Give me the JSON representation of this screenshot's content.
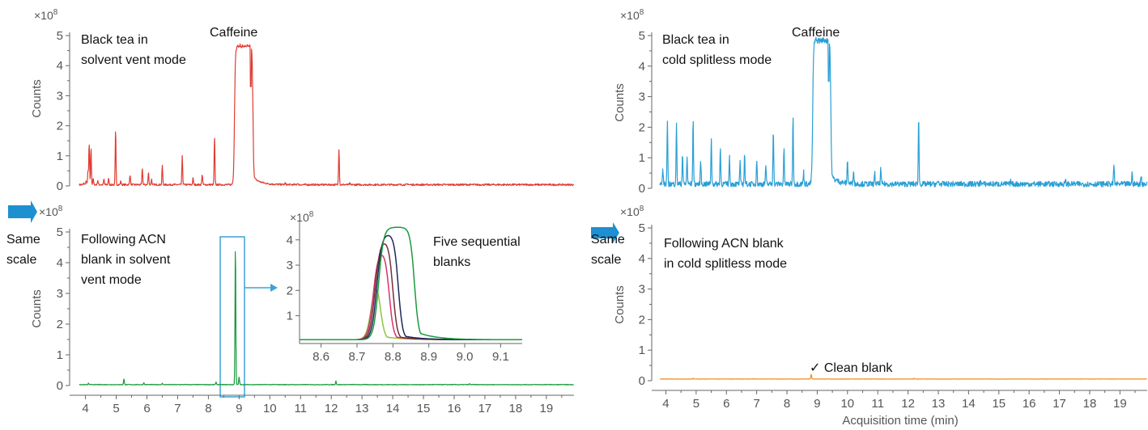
{
  "figure": {
    "x_axis_title": "Acquisition time (min)",
    "multiplier_base": "×10",
    "multiplier_exp": "8",
    "same_scale_line1": "Same",
    "same_scale_line2": "scale",
    "arrow_color": "#1E90D2",
    "zoom_box_color": "#3BA3D6"
  },
  "chart_data": [
    {
      "id": "top-left",
      "type": "line",
      "annotation_lines": [
        "Black tea in",
        "solvent vent mode"
      ],
      "peak_label": "Caffeine",
      "ylabel": "Counts",
      "xlim": [
        3.8,
        19.9
      ],
      "ylim": [
        0,
        5
      ],
      "xticks": [
        4,
        5,
        6,
        7,
        8,
        9,
        10,
        11,
        12,
        13,
        14,
        15,
        16,
        17,
        18,
        19
      ],
      "yticks": [
        0,
        1,
        2,
        3,
        4,
        5
      ],
      "color": "#E03C31",
      "baseline": 0.01,
      "peaks": [
        [
          3.95,
          0.05
        ],
        [
          4.02,
          0.12
        ],
        [
          4.08,
          0.45
        ],
        [
          4.12,
          1.38
        ],
        [
          4.18,
          1.22
        ],
        [
          4.25,
          0.2
        ],
        [
          4.4,
          0.15
        ],
        [
          4.6,
          0.18
        ],
        [
          4.75,
          0.22
        ],
        [
          4.98,
          1.82
        ],
        [
          5.15,
          0.12
        ],
        [
          5.45,
          0.35
        ],
        [
          5.85,
          0.55
        ],
        [
          6.05,
          0.42
        ],
        [
          6.15,
          0.18
        ],
        [
          6.5,
          0.65
        ],
        [
          7.15,
          0.95
        ],
        [
          7.5,
          0.22
        ],
        [
          7.8,
          0.35
        ],
        [
          8.2,
          1.6
        ],
        [
          10.5,
          0.05
        ],
        [
          10.9,
          0.05
        ],
        [
          12.25,
          1.2
        ],
        [
          12.6,
          0.04
        ],
        [
          14.5,
          0.03
        ]
      ],
      "plateau": [
        8.85,
        9.45,
        4.65
      ],
      "notch": [
        9.38,
        3.3
      ],
      "noise": 0.06
    },
    {
      "id": "bottom-left",
      "type": "line",
      "annotation_lines": [
        "Following ACN",
        "blank in solvent",
        "vent mode"
      ],
      "ylabel": "Counts",
      "xlim": [
        3.8,
        19.9
      ],
      "ylim": [
        0,
        5
      ],
      "xticks": [
        4,
        5,
        6,
        7,
        8,
        9,
        10,
        11,
        12,
        13,
        14,
        15,
        16,
        17,
        18,
        19
      ],
      "yticks": [
        0,
        1,
        2,
        3,
        4,
        5
      ],
      "color": "#1A9A3C",
      "baseline": 0.02,
      "peaks": [
        [
          5.25,
          0.18
        ],
        [
          4.1,
          0.04
        ],
        [
          5.9,
          0.06
        ],
        [
          6.5,
          0.04
        ],
        [
          8.25,
          0.08
        ],
        [
          8.88,
          4.55
        ],
        [
          9.0,
          0.25
        ],
        [
          12.15,
          0.12
        ],
        [
          16.5,
          0.03
        ]
      ],
      "noise": 0.02
    },
    {
      "id": "inset",
      "type": "line",
      "annotation_lines": [
        "Five sequential",
        "blanks"
      ],
      "xlim": [
        8.54,
        9.16
      ],
      "ylim": [
        -0.1,
        4.6
      ],
      "xticks": [
        8.6,
        8.7,
        8.8,
        8.9,
        9.0,
        9.1
      ],
      "xtick_labels": [
        "8.6",
        "8.7",
        "8.8",
        "8.9",
        "9.0",
        "9.1"
      ],
      "yticks": [
        1,
        2,
        3,
        4
      ],
      "series": [
        {
          "color": "#8DC63F",
          "rise": 8.74,
          "top": 2.6,
          "fall": 8.765,
          "tail": 0.15
        },
        {
          "color": "#D6336C",
          "rise": 8.745,
          "top": 3.55,
          "fall": 8.79,
          "tail": 0.15
        },
        {
          "color": "#7A2E3A",
          "rise": 8.75,
          "top": 3.95,
          "fall": 8.8,
          "tail": 0.15
        },
        {
          "color": "#1C2A5A",
          "rise": 8.755,
          "top": 4.2,
          "fall": 8.815,
          "tail": 0.2
        },
        {
          "color": "#1A9A3C",
          "rise": 8.76,
          "top": 4.45,
          "fall": 8.86,
          "tail": 0.35
        }
      ]
    },
    {
      "id": "top-right",
      "type": "line",
      "annotation_lines": [
        "Black tea in",
        "cold splitless mode"
      ],
      "peak_label": "Caffeine",
      "ylabel": "Counts",
      "xlim": [
        3.8,
        19.9
      ],
      "ylim": [
        0,
        5
      ],
      "xticks": [
        4,
        5,
        6,
        7,
        8,
        9,
        10,
        11,
        12,
        13,
        14,
        15,
        16,
        17,
        18,
        19
      ],
      "yticks": [
        0,
        1,
        2,
        3,
        4,
        5
      ],
      "color": "#2A9FD6",
      "baseline": 0.05,
      "peaks": [
        [
          3.9,
          0.5
        ],
        [
          4.05,
          2.0
        ],
        [
          4.35,
          1.95
        ],
        [
          4.55,
          1.0
        ],
        [
          4.7,
          0.9
        ],
        [
          4.9,
          2.1
        ],
        [
          5.15,
          0.8
        ],
        [
          5.5,
          1.5
        ],
        [
          5.8,
          1.2
        ],
        [
          6.1,
          0.9
        ],
        [
          6.45,
          0.7
        ],
        [
          6.6,
          1.0
        ],
        [
          7.0,
          0.8
        ],
        [
          7.3,
          0.6
        ],
        [
          7.55,
          1.85
        ],
        [
          7.9,
          1.2
        ],
        [
          8.2,
          2.2
        ],
        [
          8.55,
          0.4
        ],
        [
          10.0,
          0.8
        ],
        [
          10.2,
          0.5
        ],
        [
          10.9,
          0.35
        ],
        [
          11.1,
          0.5
        ],
        [
          12.35,
          2.2
        ],
        [
          13.0,
          0.1
        ],
        [
          14.4,
          0.15
        ],
        [
          15.4,
          0.1
        ],
        [
          17.2,
          0.1
        ],
        [
          18.8,
          0.65
        ],
        [
          19.4,
          0.35
        ],
        [
          19.7,
          0.3
        ]
      ],
      "plateau": [
        8.85,
        9.45,
        4.75
      ],
      "notch": [
        9.38,
        3.5
      ],
      "noise": 0.18
    },
    {
      "id": "bottom-right",
      "type": "line",
      "annotation_lines": [
        "Following ACN blank",
        "in cold splitless mode"
      ],
      "note": "✓ Clean blank",
      "ylabel": "Counts",
      "xlabel": "Acquisition time (min)",
      "xlim": [
        3.8,
        19.9
      ],
      "ylim": [
        0,
        5
      ],
      "xticks": [
        4,
        5,
        6,
        7,
        8,
        9,
        10,
        11,
        12,
        13,
        14,
        15,
        16,
        17,
        18,
        19
      ],
      "yticks": [
        0,
        1,
        2,
        3,
        4,
        5
      ],
      "color": "#F08C1A",
      "baseline": 0.05,
      "peaks": [
        [
          8.8,
          0.15
        ],
        [
          4.9,
          0.02
        ],
        [
          12.2,
          0.02
        ]
      ],
      "noise": 0.01
    }
  ]
}
